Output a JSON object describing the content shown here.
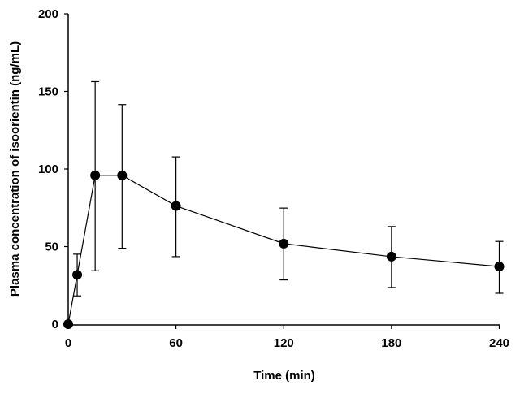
{
  "chart_data": {
    "type": "line",
    "title": "",
    "xlabel": "Time (min)",
    "ylabel": "Plasma concentration of isoorientin (ng/mL)",
    "xlim": [
      0,
      240
    ],
    "ylim": [
      0,
      200
    ],
    "xticks": [
      0,
      60,
      120,
      180,
      240
    ],
    "yticks": [
      0,
      50,
      100,
      150,
      200
    ],
    "grid": false,
    "marker_color": "#000000",
    "series": [
      {
        "x": [
          0,
          5,
          15,
          30,
          60,
          120,
          180,
          240
        ],
        "y": [
          0,
          31.8,
          95.9,
          95.9,
          76.2,
          51.9,
          43.5,
          37.1
        ],
        "error_upper": [
          0,
          45.1,
          156.3,
          141.5,
          107.8,
          74.8,
          62.9,
          53.3
        ],
        "error_lower": [
          0,
          18.2,
          34.4,
          48.9,
          43.5,
          28.5,
          23.6,
          19.9
        ]
      }
    ]
  }
}
